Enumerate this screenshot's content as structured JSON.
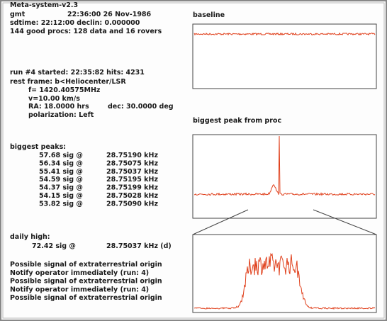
{
  "header": {
    "title": "Meta-system-v2.3",
    "gmt_label": "gmt",
    "gmt": "22:36:00 26 Nov-1986",
    "sdtime": "sdtime: 22:12:00 declin: 0.000000",
    "procs": "144 good procs: 128 data and 16 rovers"
  },
  "run": {
    "started": "run #4 started: 22:35:82 hits: 4231",
    "rest_frame": "rest frame: b<Heliocenter/LSR",
    "f": "f= 1420.40575MHz",
    "v": "v=10.00 km/s",
    "ra": "RA: 18.0000 hrs",
    "dec": "dec: 30.0000 deg",
    "polarization": "polarization: Left"
  },
  "peaks": {
    "title": "biggest peaks:",
    "rows": [
      [
        "57.68 sig @",
        "28.75190 kHz"
      ],
      [
        "56.34 sig @",
        "28.75075 kHz"
      ],
      [
        "55.41 sig @",
        "28.75037 kHz"
      ],
      [
        "54.59 sig @",
        "28.75195 kHz"
      ],
      [
        "54.37 sig @",
        "28.75199 kHz"
      ],
      [
        "54.15 sig @",
        "28.75028 kHz"
      ],
      [
        "53.82 sig @",
        "28.75090 kHz"
      ]
    ]
  },
  "daily_high": {
    "title": "daily high:",
    "sig": "72.42 sig @",
    "freq": "28.75037 kHz (d)"
  },
  "messages": [
    "Possible signal of extraterrestrial origin",
    "Notify operator immediately (run: 4)",
    "Possible signal of extraterrestrial origin",
    "Notify operator immediately (run: 4)",
    "Possible signal of extraterrestrial origin"
  ],
  "panels": {
    "baseline": "baseline",
    "peak": "biggest peak from proc"
  }
}
